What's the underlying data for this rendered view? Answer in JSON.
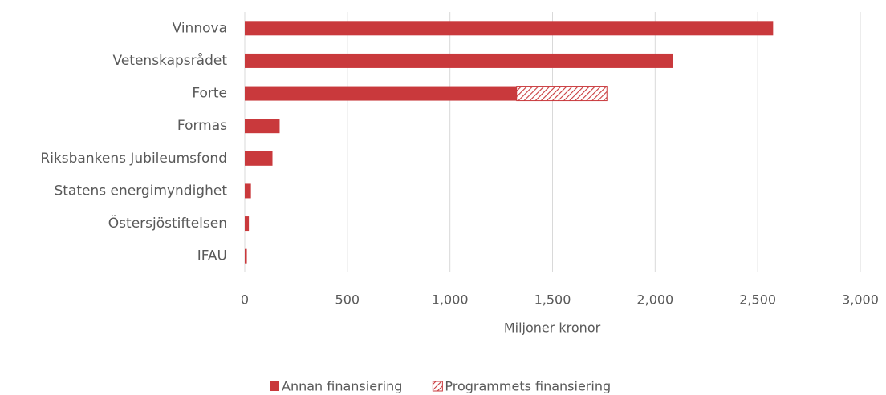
{
  "chart_data": {
    "type": "hbar_stacked",
    "categories": [
      "Vinnova",
      "Vetenskapsrådet",
      "Forte",
      "Formas",
      "Riksbankens Jubileumsfond",
      "Statens energimyndighet",
      "Östersjöstiftelsen",
      "IFAU"
    ],
    "series": [
      {
        "name": "Annan finansiering",
        "color": "#c9393c",
        "pattern": "solid",
        "values": [
          2575,
          2085,
          1325,
          170,
          135,
          30,
          20,
          10
        ]
      },
      {
        "name": "Programmets finansiering",
        "color": "#c9393c",
        "pattern": "hatch",
        "values": [
          null,
          null,
          440,
          null,
          null,
          null,
          null,
          null
        ]
      }
    ],
    "xlabel": "Miljoner kronor",
    "xlim": [
      0,
      3000
    ],
    "xticks": [
      0,
      {
        "value": 500,
        "label": "500"
      },
      {
        "value": 1000,
        "label": "1,000"
      },
      {
        "value": 1500,
        "label": "1,500"
      },
      {
        "value": 2000,
        "label": "2,000"
      },
      {
        "value": 2500,
        "label": "2,500"
      },
      {
        "value": 3000,
        "label": "3,000"
      }
    ],
    "grid": true,
    "legend": "bottom"
  }
}
